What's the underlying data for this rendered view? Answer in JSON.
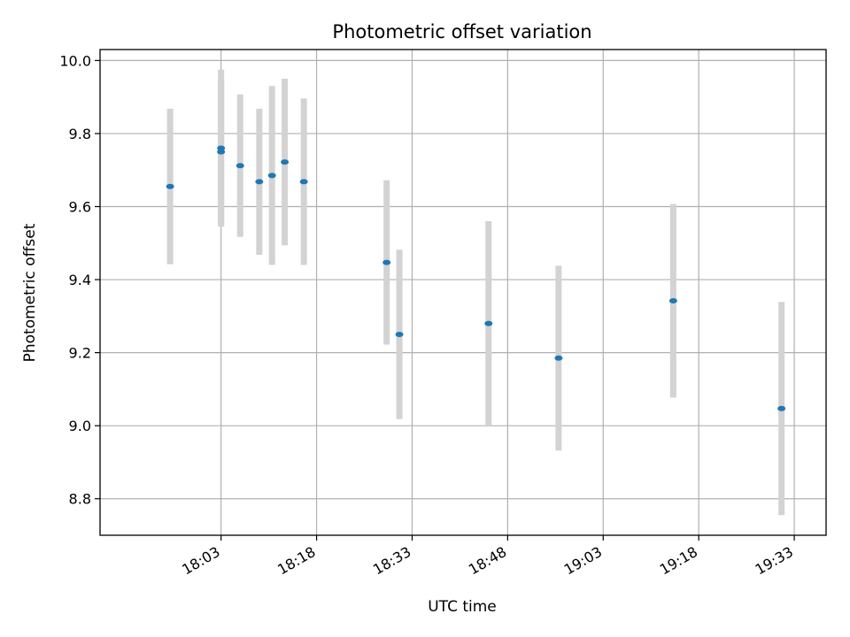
{
  "chart_data": {
    "type": "scatter",
    "title": "Photometric offset variation",
    "xlabel": "UTC time",
    "ylabel": "Photometric offset",
    "xlim": [
      "17:44",
      "19:38"
    ],
    "ylim": [
      8.7,
      10.03
    ],
    "grid": true,
    "x_ticks": [
      "18:03",
      "18:18",
      "18:33",
      "18:48",
      "19:03",
      "19:18",
      "19:33"
    ],
    "y_ticks": [
      "8.8",
      "9.0",
      "9.2",
      "9.4",
      "9.6",
      "9.8",
      "10.0"
    ],
    "marker_color": "#1f77b4",
    "errorbar_color": "#d3d3d3",
    "points": [
      {
        "x": "17:55",
        "y": 9.655,
        "err": 0.213
      },
      {
        "x": "18:03",
        "y": 9.76,
        "err": 0.215
      },
      {
        "x": "18:03",
        "y": 9.75,
        "err": 0.2
      },
      {
        "x": "18:06",
        "y": 9.712,
        "err": 0.195
      },
      {
        "x": "18:09",
        "y": 9.668,
        "err": 0.2
      },
      {
        "x": "18:11",
        "y": 9.685,
        "err": 0.245
      },
      {
        "x": "18:13",
        "y": 9.722,
        "err": 0.228
      },
      {
        "x": "18:16",
        "y": 9.668,
        "err": 0.228
      },
      {
        "x": "18:29",
        "y": 9.447,
        "err": 0.225
      },
      {
        "x": "18:31",
        "y": 9.25,
        "err": 0.232
      },
      {
        "x": "18:45",
        "y": 9.28,
        "err": 0.28
      },
      {
        "x": "18:56",
        "y": 9.185,
        "err": 0.253
      },
      {
        "x": "19:14",
        "y": 9.342,
        "err": 0.265
      },
      {
        "x": "19:31",
        "y": 9.047,
        "err": 0.292
      }
    ]
  }
}
